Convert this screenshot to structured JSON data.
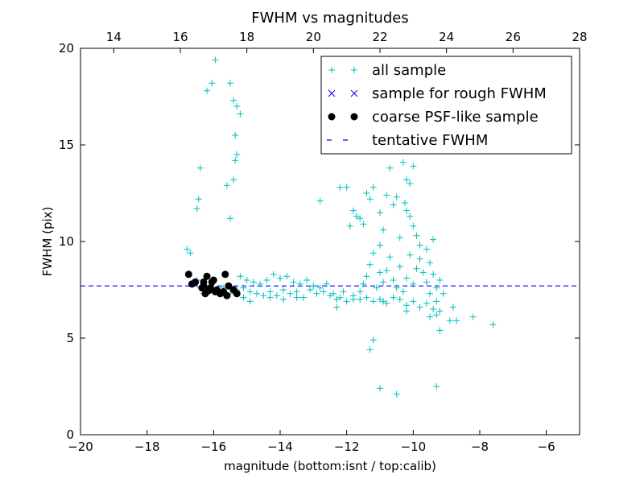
{
  "chart_data": {
    "type": "scatter",
    "title": "FWHM vs magnitudes",
    "xlabel": "magnitude (bottom:isnt / top:calib)",
    "ylabel": "FWHM (pix)",
    "xlim": [
      -20,
      -5
    ],
    "ylim": [
      0,
      20
    ],
    "top_xlim": [
      13,
      28
    ],
    "x_ticks": [
      -20,
      -18,
      -16,
      -14,
      -12,
      -10,
      -8,
      -6
    ],
    "x_tick_labels": [
      "−20",
      "−18",
      "−16",
      "−14",
      "−12",
      "−10",
      "−8",
      "−6"
    ],
    "y_ticks": [
      0,
      5,
      10,
      15,
      20
    ],
    "y_tick_labels": [
      "0",
      "5",
      "10",
      "15",
      "20"
    ],
    "top_ticks": [
      14,
      16,
      18,
      20,
      22,
      24,
      26,
      28
    ],
    "top_tick_labels": [
      "14",
      "16",
      "18",
      "20",
      "22",
      "24",
      "26",
      "28"
    ],
    "legend_position": "top-right",
    "colors": {
      "all": "#00bfbf",
      "rough": "#0000ff",
      "coarse": "#000000",
      "fwhm": "#0000ff"
    },
    "legend": [
      {
        "label": "all sample",
        "marker": "plus",
        "color": "#00bfbf"
      },
      {
        "label": "sample for rough FWHM",
        "marker": "x",
        "color": "#0000ff"
      },
      {
        "label": "coarse PSF-like sample",
        "marker": "dot",
        "color": "#000000"
      },
      {
        "label": "tentative FWHM",
        "marker": "dash",
        "color": "#0000ff"
      }
    ],
    "tentative_fwhm": 7.7,
    "series": [
      {
        "name": "all sample",
        "marker": "plus",
        "color": "#00bfbf",
        "points": [
          [
            -16.8,
            9.6
          ],
          [
            -16.7,
            9.4
          ],
          [
            -16.5,
            11.7
          ],
          [
            -16.45,
            12.2
          ],
          [
            -16.4,
            13.8
          ],
          [
            -16.2,
            17.8
          ],
          [
            -16.05,
            18.2
          ],
          [
            -15.95,
            19.4
          ],
          [
            -15.5,
            18.2
          ],
          [
            -15.4,
            17.3
          ],
          [
            -15.3,
            17.0
          ],
          [
            -15.2,
            16.6
          ],
          [
            -15.35,
            15.5
          ],
          [
            -15.3,
            14.5
          ],
          [
            -15.35,
            14.2
          ],
          [
            -15.4,
            13.2
          ],
          [
            -15.6,
            12.9
          ],
          [
            -15.5,
            11.2
          ],
          [
            -16.5,
            8.0
          ],
          [
            -16.4,
            7.6
          ],
          [
            -16.3,
            7.3
          ],
          [
            -16.1,
            7.5
          ],
          [
            -15.9,
            7.4
          ],
          [
            -15.7,
            7.6
          ],
          [
            -15.5,
            7.3
          ],
          [
            -15.3,
            7.5
          ],
          [
            -15.1,
            7.6
          ],
          [
            -14.9,
            7.4
          ],
          [
            -14.7,
            7.3
          ],
          [
            -14.5,
            7.2
          ],
          [
            -14.3,
            7.4
          ],
          [
            -14.1,
            7.2
          ],
          [
            -13.9,
            7.5
          ],
          [
            -13.7,
            7.3
          ],
          [
            -13.5,
            7.4
          ],
          [
            -13.3,
            7.1
          ],
          [
            -13.1,
            7.5
          ],
          [
            -12.9,
            7.3
          ],
          [
            -12.7,
            7.4
          ],
          [
            -12.5,
            7.2
          ],
          [
            -12.3,
            7.0
          ],
          [
            -12.1,
            7.4
          ],
          [
            -15.2,
            8.2
          ],
          [
            -15.0,
            8.0
          ],
          [
            -14.8,
            7.9
          ],
          [
            -14.6,
            7.8
          ],
          [
            -14.4,
            8.0
          ],
          [
            -14.2,
            8.3
          ],
          [
            -14.0,
            8.1
          ],
          [
            -13.8,
            8.2
          ],
          [
            -13.6,
            7.9
          ],
          [
            -13.4,
            7.8
          ],
          [
            -13.2,
            8.0
          ],
          [
            -13.0,
            7.7
          ],
          [
            -12.8,
            7.6
          ],
          [
            -12.6,
            7.8
          ],
          [
            -12.4,
            7.3
          ],
          [
            -12.2,
            7.1
          ],
          [
            -15.1,
            7.1
          ],
          [
            -14.9,
            6.9
          ],
          [
            -14.3,
            7.1
          ],
          [
            -13.9,
            7.0
          ],
          [
            -13.5,
            7.1
          ],
          [
            -12.3,
            6.6
          ],
          [
            -12.0,
            6.9
          ],
          [
            -11.8,
            7.0
          ],
          [
            -12.8,
            12.1
          ],
          [
            -12.2,
            12.8
          ],
          [
            -12.0,
            12.8
          ],
          [
            -11.8,
            11.6
          ],
          [
            -11.6,
            11.2
          ],
          [
            -11.4,
            12.5
          ],
          [
            -11.3,
            12.2
          ],
          [
            -11.2,
            12.8
          ],
          [
            -11.0,
            11.5
          ],
          [
            -10.8,
            12.4
          ],
          [
            -10.7,
            13.8
          ],
          [
            -10.5,
            12.3
          ],
          [
            -10.3,
            14.1
          ],
          [
            -10.2,
            13.2
          ],
          [
            -10.0,
            13.9
          ],
          [
            -10.1,
            13.0
          ],
          [
            -10.25,
            12.0
          ],
          [
            -10.2,
            11.6
          ],
          [
            -10.1,
            11.3
          ],
          [
            -10.0,
            10.8
          ],
          [
            -9.9,
            10.3
          ],
          [
            -9.8,
            9.8
          ],
          [
            -9.6,
            9.6
          ],
          [
            -9.4,
            10.1
          ],
          [
            -11.9,
            10.8
          ],
          [
            -11.7,
            11.3
          ],
          [
            -11.5,
            10.9
          ],
          [
            -11.2,
            9.4
          ],
          [
            -11.0,
            9.8
          ],
          [
            -10.9,
            10.6
          ],
          [
            -10.6,
            11.9
          ],
          [
            -10.4,
            10.2
          ],
          [
            -11.6,
            7.4
          ],
          [
            -11.5,
            7.8
          ],
          [
            -11.4,
            8.2
          ],
          [
            -11.3,
            8.8
          ],
          [
            -11.1,
            7.6
          ],
          [
            -11.0,
            8.4
          ],
          [
            -10.9,
            7.9
          ],
          [
            -10.8,
            8.5
          ],
          [
            -10.7,
            9.2
          ],
          [
            -10.6,
            8.0
          ],
          [
            -10.5,
            7.6
          ],
          [
            -10.4,
            8.7
          ],
          [
            -10.3,
            7.4
          ],
          [
            -10.2,
            8.1
          ],
          [
            -10.1,
            9.3
          ],
          [
            -10.0,
            7.8
          ],
          [
            -9.9,
            8.6
          ],
          [
            -9.8,
            9.1
          ],
          [
            -9.7,
            8.4
          ],
          [
            -9.6,
            7.9
          ],
          [
            -9.5,
            8.9
          ],
          [
            -9.4,
            8.3
          ],
          [
            -9.3,
            7.6
          ],
          [
            -9.2,
            8.0
          ],
          [
            -11.8,
            7.2
          ],
          [
            -11.6,
            7.0
          ],
          [
            -11.4,
            7.1
          ],
          [
            -11.2,
            6.9
          ],
          [
            -11.0,
            7.0
          ],
          [
            -10.8,
            6.8
          ],
          [
            -10.6,
            7.1
          ],
          [
            -10.4,
            7.0
          ],
          [
            -10.2,
            6.7
          ],
          [
            -10.0,
            6.9
          ],
          [
            -9.8,
            6.6
          ],
          [
            -9.6,
            6.8
          ],
          [
            -9.4,
            6.5
          ],
          [
            -9.3,
            6.2
          ],
          [
            -9.2,
            6.4
          ],
          [
            -9.3,
            6.9
          ],
          [
            -9.5,
            6.1
          ],
          [
            -9.2,
            5.4
          ],
          [
            -8.9,
            5.9
          ],
          [
            -8.7,
            5.9
          ],
          [
            -8.2,
            6.1
          ],
          [
            -7.6,
            5.7
          ],
          [
            -8.8,
            6.6
          ],
          [
            -9.1,
            7.3
          ],
          [
            -11.3,
            4.4
          ],
          [
            -11.2,
            4.9
          ],
          [
            -11.0,
            2.4
          ],
          [
            -10.5,
            2.1
          ],
          [
            -9.3,
            2.5
          ],
          [
            -10.2,
            6.4
          ],
          [
            -9.5,
            7.3
          ],
          [
            -10.9,
            6.9
          ]
        ]
      },
      {
        "name": "sample for rough FWHM",
        "marker": "x",
        "color": "#0000ff",
        "points": []
      },
      {
        "name": "coarse PSF-like sample",
        "marker": "dot",
        "color": "#000000",
        "points": [
          [
            -16.75,
            8.3
          ],
          [
            -16.65,
            7.8
          ],
          [
            -16.55,
            7.9
          ],
          [
            -16.35,
            7.6
          ],
          [
            -16.3,
            7.7
          ],
          [
            -16.25,
            7.3
          ],
          [
            -16.2,
            8.2
          ],
          [
            -16.1,
            7.6
          ],
          [
            -16.05,
            7.9
          ],
          [
            -16.0,
            8.0
          ],
          [
            -15.95,
            7.4
          ],
          [
            -15.9,
            7.5
          ],
          [
            -15.8,
            7.3
          ],
          [
            -15.7,
            7.4
          ],
          [
            -15.65,
            8.3
          ],
          [
            -15.6,
            7.2
          ],
          [
            -15.55,
            7.7
          ],
          [
            -15.4,
            7.5
          ],
          [
            -15.3,
            7.3
          ],
          [
            -16.3,
            7.9
          ],
          [
            -16.15,
            7.45
          ]
        ]
      }
    ]
  }
}
